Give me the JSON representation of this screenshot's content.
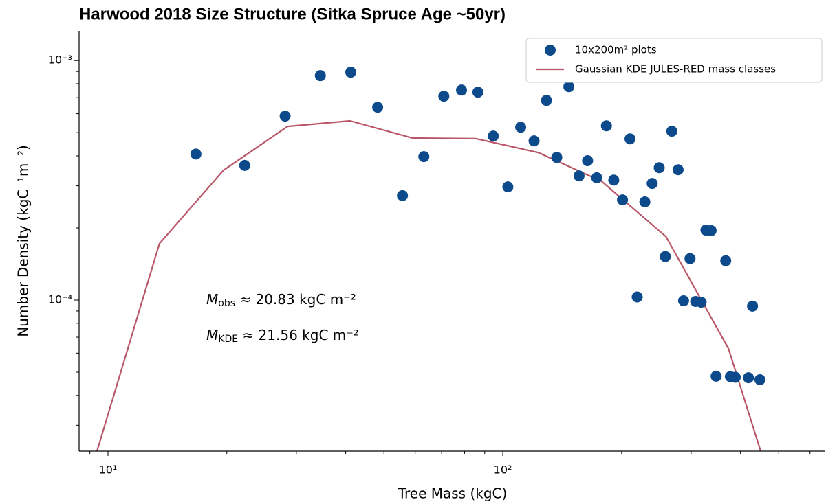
{
  "chart_data": {
    "type": "scatter",
    "title": "Harwood 2018 Size Structure (Sitka Spruce Age ~50yr)",
    "x_label": "Tree Mass (kgC)",
    "y_label": "Number Density (kgC⁻¹m⁻²)",
    "xscale": "log",
    "yscale": "log",
    "xlim": [
      8.45,
      656
    ],
    "ylim": [
      2.34e-05,
      0.00133
    ],
    "xticks": [
      {
        "value": 10,
        "label": "10¹"
      },
      {
        "value": 100,
        "label": "10²"
      }
    ],
    "xminorticks": [
      9,
      20,
      30,
      40,
      50,
      60,
      70,
      80,
      90,
      200,
      300,
      400,
      500,
      600
    ],
    "yticks": [
      {
        "value": 0.0001,
        "label": "10⁻⁴"
      },
      {
        "value": 0.001,
        "label": "10⁻³"
      }
    ],
    "yminorticks": [
      3e-05,
      4e-05,
      5e-05,
      6e-05,
      7e-05,
      8e-05,
      9e-05,
      0.0002,
      0.0003,
      0.0004,
      0.0005,
      0.0006,
      0.0007,
      0.0008,
      0.0009
    ],
    "legend_position": "upper right",
    "series": [
      {
        "name": "10x200m² plots",
        "type": "scatter",
        "color": "#0d4a8c",
        "x": [
          16.7,
          22.2,
          28.1,
          34.5,
          41.2,
          48.2,
          55.7,
          63.1,
          70.9,
          78.6,
          86.5,
          94.6,
          103,
          111,
          120,
          129,
          137,
          147,
          156,
          164,
          173,
          183,
          191,
          201,
          210,
          219,
          229,
          239,
          249,
          258,
          268,
          278,
          287,
          298,
          308,
          318,
          327,
          337,
          347,
          367,
          377,
          388,
          419,
          429,
          448
        ],
        "values": [
          0.000407,
          0.000365,
          0.000586,
          0.000865,
          0.000894,
          0.000638,
          0.000273,
          0.000397,
          0.00071,
          0.000753,
          0.000738,
          0.000484,
          0.000297,
          0.000527,
          0.000462,
          0.000682,
          0.000394,
          0.000778,
          0.00033,
          0.000382,
          0.000324,
          0.000534,
          0.000317,
          0.000262,
          0.000471,
          0.000103,
          0.000257,
          0.000307,
          0.000357,
          0.000152,
          0.000507,
          0.00035,
          9.93e-05,
          0.000149,
          9.87e-05,
          9.8e-05,
          0.000196,
          0.000195,
          4.81e-05,
          0.000146,
          4.79e-05,
          4.76e-05,
          4.74e-05,
          9.43e-05,
          4.65e-05
        ]
      },
      {
        "name": "Gaussian KDE JULES-RED mass classes",
        "type": "line",
        "color": "#b95668",
        "x": [
          9.38,
          13.5,
          19.6,
          28.5,
          41.0,
          59.1,
          85.5,
          123,
          178,
          259,
          373,
          450
        ],
        "values": [
          2.34e-05,
          0.000172,
          0.000348,
          0.000531,
          0.00056,
          0.000475,
          0.000472,
          0.000413,
          0.000313,
          0.000184,
          6.27e-05,
          2.34e-05
        ]
      }
    ],
    "annotations": [
      {
        "symbol": "M",
        "subscript": "obs",
        "text": " ≈ 20.83 kgC m⁻²"
      },
      {
        "symbol": "M",
        "subscript": "KDE",
        "text": " ≈ 21.56 kgC m⁻²"
      }
    ]
  }
}
